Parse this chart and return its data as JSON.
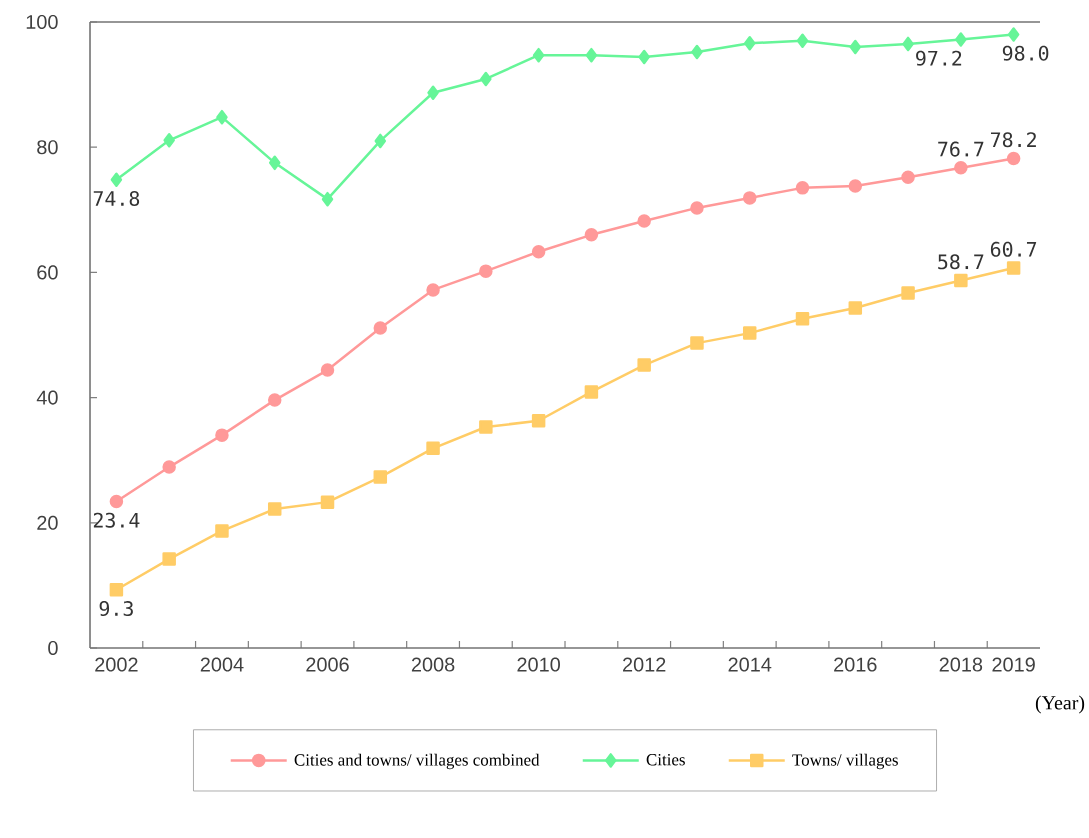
{
  "chart_data": {
    "type": "line",
    "categories": [
      "2002",
      null,
      "2004",
      null,
      "2006",
      null,
      "2008",
      null,
      "2010",
      null,
      "2012",
      null,
      "2014",
      null,
      "2016",
      null,
      "2018",
      "2019"
    ],
    "xlabel": "(Year)",
    "ylim": [
      0,
      100
    ],
    "yticks": [
      0,
      20,
      40,
      60,
      80,
      100
    ],
    "grid": false,
    "legend": "bottom",
    "series": [
      {
        "name": "Cities and towns/ villages combined",
        "color": "#ff9999",
        "marker": "circle",
        "values": [
          23.4,
          28.9,
          34.0,
          39.6,
          44.4,
          51.1,
          57.2,
          60.2,
          63.3,
          66.0,
          68.2,
          70.3,
          71.9,
          73.5,
          73.8,
          75.2,
          76.7,
          78.2
        ],
        "value_labels": [
          "23.4",
          null,
          null,
          null,
          null,
          null,
          null,
          null,
          null,
          null,
          null,
          null,
          null,
          null,
          null,
          null,
          "76.7",
          "78.2"
        ]
      },
      {
        "name": "Cities",
        "color": "#66f598",
        "marker": "diamond",
        "values": [
          74.8,
          81.1,
          84.8,
          77.5,
          71.7,
          81.0,
          88.7,
          90.9,
          94.7,
          94.7,
          94.4,
          95.2,
          96.6,
          97.0,
          96.0,
          96.5,
          97.2,
          98.0
        ],
        "value_labels": [
          "74.8",
          null,
          null,
          null,
          null,
          null,
          null,
          null,
          null,
          null,
          null,
          null,
          null,
          null,
          null,
          null,
          "97.2",
          "98.0"
        ]
      },
      {
        "name": "Towns/ villages",
        "color": "#ffcc66",
        "marker": "square",
        "values": [
          9.3,
          14.2,
          18.7,
          22.2,
          23.3,
          27.3,
          31.9,
          35.3,
          36.3,
          40.9,
          45.2,
          48.7,
          50.3,
          52.6,
          54.3,
          56.7,
          58.7,
          60.7
        ],
        "value_labels": [
          "9.3",
          null,
          null,
          null,
          null,
          null,
          null,
          null,
          null,
          null,
          null,
          null,
          null,
          null,
          null,
          null,
          "58.7",
          "60.7"
        ]
      }
    ]
  }
}
